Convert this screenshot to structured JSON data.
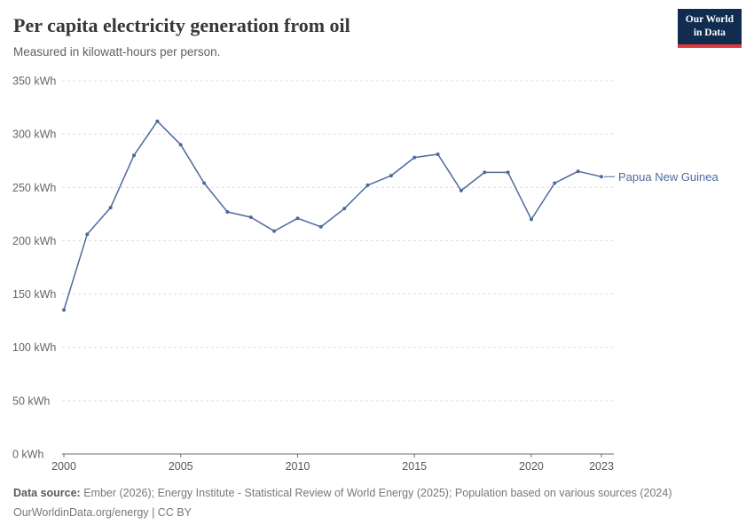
{
  "header": {
    "title": "Per capita electricity generation from oil",
    "subtitle": "Measured in kilowatt-hours per person.",
    "logo_line1": "Our World",
    "logo_line2": "in Data"
  },
  "chart_data": {
    "type": "line",
    "title": "Per capita electricity generation from oil",
    "unit": "kWh",
    "series_label": "Papua New Guinea",
    "x": [
      2000,
      2001,
      2002,
      2003,
      2004,
      2005,
      2006,
      2007,
      2008,
      2009,
      2010,
      2011,
      2012,
      2013,
      2014,
      2015,
      2016,
      2017,
      2018,
      2019,
      2020,
      2021,
      2022,
      2023
    ],
    "values": [
      135,
      206,
      231,
      280,
      312,
      290,
      254,
      227,
      222,
      209,
      221,
      213,
      230,
      252,
      261,
      278,
      281,
      247,
      264,
      264,
      220,
      254,
      265,
      260
    ],
    "ylim": [
      0,
      350
    ],
    "yticks": [
      0,
      50,
      100,
      150,
      200,
      250,
      300,
      350
    ],
    "xticks": [
      2000,
      2005,
      2010,
      2015,
      2020,
      2023
    ],
    "grid": "horizontal-dashed",
    "legend_position": "end-of-line",
    "line_color": "#4c6a9c",
    "axis_color": "#6e6e6e",
    "grid_color": "#dcdcdc",
    "tick_label_color": "#666666"
  },
  "footer": {
    "source_label": "Data source:",
    "source_text": " Ember (2026); Energy Institute - Statistical Review of World Energy (2025); Population based on various sources (2024)",
    "license_line": "OurWorldinData.org/energy | CC BY"
  }
}
